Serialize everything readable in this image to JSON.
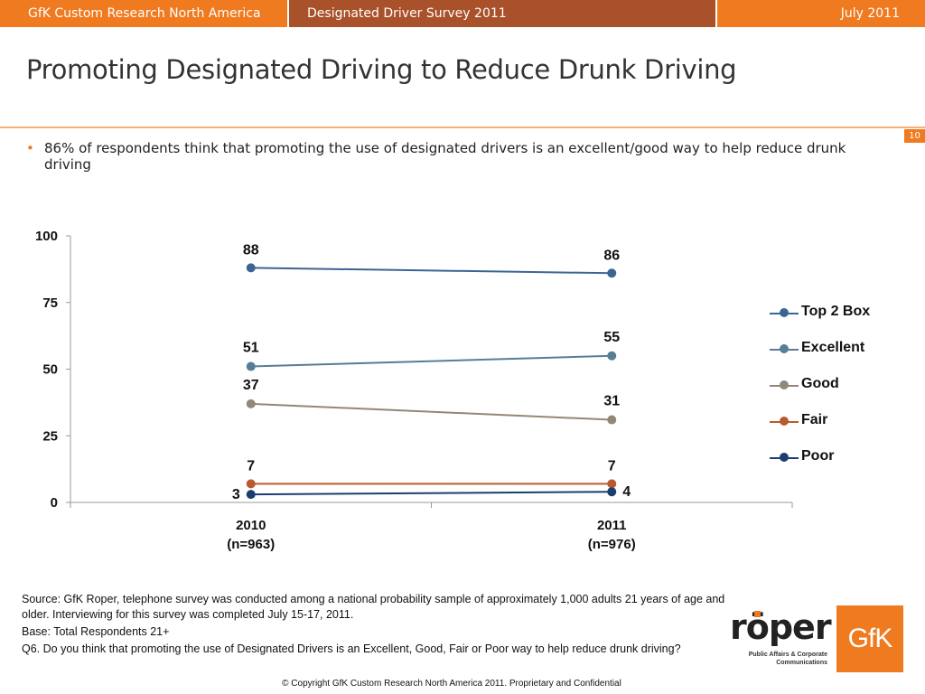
{
  "header": {
    "left": "GfK Custom Research North America",
    "middle": "Designated Driver Survey 2011",
    "right": "July 2011"
  },
  "title": "Promoting Designated Driving to Reduce Drunk Driving",
  "page_number": "10",
  "bullet": "86% of respondents think that promoting the use of designated drivers is an excellent/good way to help reduce drunk driving",
  "chart_data": {
    "type": "line",
    "categories": [
      "2010\n(n=963)",
      "2011\n(n=976)"
    ],
    "category_lines": [
      [
        "2010",
        "(n=963)"
      ],
      [
        "2011",
        "(n=976)"
      ]
    ],
    "ylim": [
      0,
      100
    ],
    "yticks": [
      0,
      25,
      50,
      75,
      100
    ],
    "legend_position": "right",
    "series": [
      {
        "name": "Top 2 Box",
        "values": [
          88,
          86
        ],
        "color": "#3c6594"
      },
      {
        "name": "Excellent",
        "values": [
          51,
          55
        ],
        "color": "#577d97"
      },
      {
        "name": "Good",
        "values": [
          37,
          31
        ],
        "color": "#938778"
      },
      {
        "name": "Fair",
        "values": [
          7,
          7
        ],
        "color": "#b95b2e"
      },
      {
        "name": "Poor",
        "values": [
          3,
          4
        ],
        "color": "#1a3f6e"
      }
    ]
  },
  "source": {
    "line1": "Source: GfK Roper, telephone survey was conducted among a national probability sample of approximately 1,000 adults 21 years of age and older.  Interviewing for this survey was completed July 15-17, 2011.",
    "line2": "Base: Total Respondents 21+",
    "line3": "Q6. Do you think that promoting the use of Designated Drivers is an Excellent, Good, Fair or Poor way to help reduce drunk driving?"
  },
  "copyright": "© Copyright GfK Custom Research North America 2011.  Proprietary and Confidential",
  "logos": {
    "roper_word": "röper",
    "roper_sub": "Public Affairs & Corporate Communications",
    "gfk": "GfK"
  },
  "colors": {
    "accent": "#f07a1f",
    "header_mid": "#a9512a",
    "rule": "#f4b27a"
  }
}
